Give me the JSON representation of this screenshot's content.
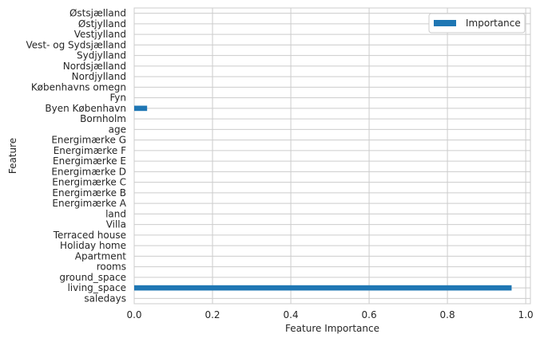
{
  "chart_data": {
    "type": "bar",
    "orientation": "horizontal",
    "categories": [
      "saledays",
      "living_space",
      "ground_space",
      "rooms",
      "Apartment",
      "Holiday home",
      "Terraced house",
      "Villa",
      "land",
      "Energimærke A",
      "Energimærke B",
      "Energimærke C",
      "Energimærke D",
      "Energimærke E",
      "Energimærke F",
      "Energimærke G",
      "age",
      "Bornholm",
      "Byen København",
      "Fyn",
      "Københavns omegn",
      "Nordjylland",
      "Nordsjælland",
      "Sydjylland",
      "Vest- og Sydsjælland",
      "Vestjylland",
      "Østjylland",
      "Østsjælland"
    ],
    "series": [
      {
        "name": "Importance",
        "values": [
          0.0,
          0.964,
          0.0,
          0.0,
          0.0,
          0.0,
          0.0,
          0.0,
          0.0,
          0.0,
          0.0,
          0.0,
          0.0,
          0.0,
          0.0,
          0.0,
          0.0,
          0.0,
          0.033,
          0.0,
          0.0,
          0.0,
          0.0,
          0.0,
          0.0,
          0.0,
          0.0,
          0.0
        ]
      }
    ],
    "xlabel": "Feature Importance",
    "ylabel": "Feature",
    "xlim": [
      0,
      1.0
    ],
    "xticks": [
      "0.0",
      "0.2",
      "0.4",
      "0.6",
      "0.8",
      "1.0"
    ],
    "xtick_values": [
      0,
      0.2,
      0.4,
      0.6,
      0.8,
      1.0
    ],
    "grid": true,
    "legend_position": "top-right",
    "bar_color": "#1f77b4",
    "grid_color": "#cccccc"
  }
}
